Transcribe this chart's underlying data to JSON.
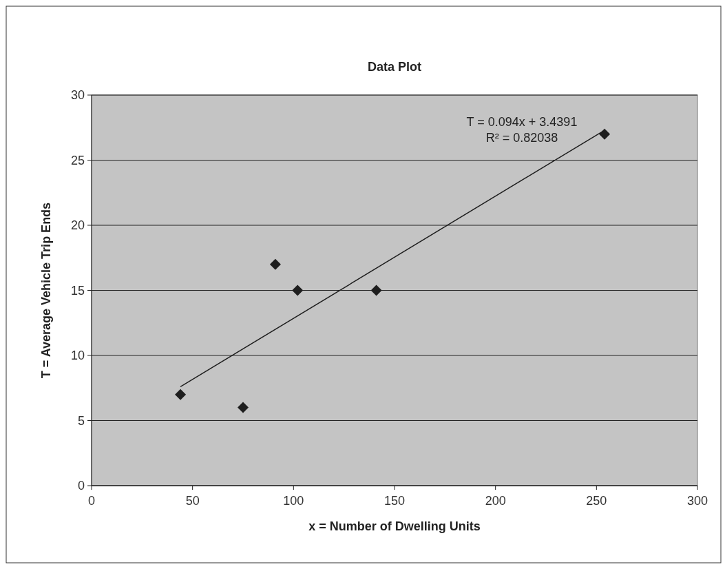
{
  "chart_data": {
    "type": "scatter",
    "title": "Data Plot",
    "xlabel": "x = Number of Dwelling Units",
    "ylabel": "T = Average Vehicle Trip Ends",
    "xlim": [
      0,
      300
    ],
    "xticks": [
      0,
      50,
      100,
      150,
      200,
      250,
      300
    ],
    "ylim": [
      0,
      30
    ],
    "yticks": [
      0,
      5,
      10,
      15,
      20,
      25,
      30
    ],
    "grid": "y",
    "marker": "diamond",
    "series": [
      {
        "color": "#1e1e1e",
        "x": [
          44,
          75,
          91,
          102,
          141,
          254
        ],
        "values": [
          7,
          6,
          17,
          15,
          15,
          27
        ]
      },
      {
        "type": "line",
        "marker": "none",
        "color": "#1e1e1e",
        "x": [
          44,
          254
        ],
        "values": [
          7.6,
          27.3
        ]
      }
    ],
    "annotations": [
      "T = 0.094x + 3.4391",
      "R² = 0.82038"
    ]
  }
}
